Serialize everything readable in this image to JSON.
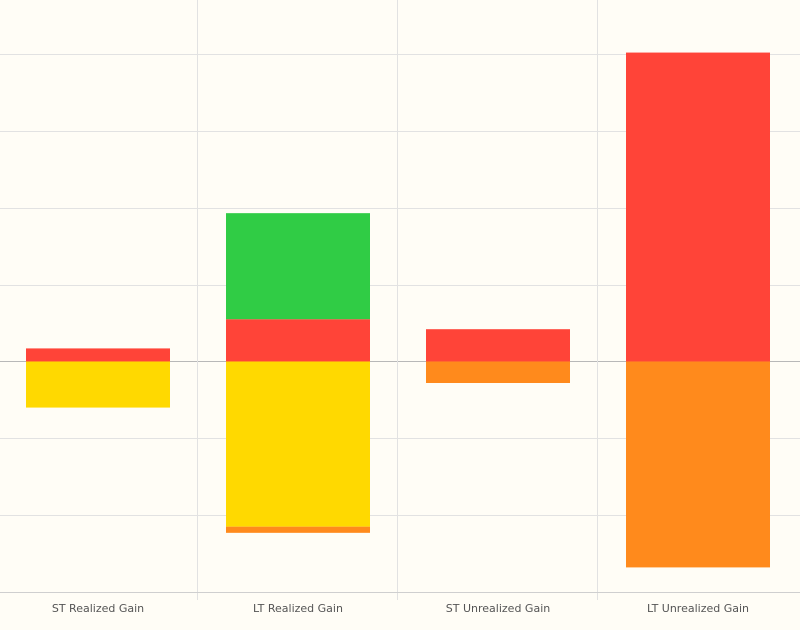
{
  "chart_data": {
    "type": "bar",
    "stacked": true,
    "categories": [
      "ST Realized Gain",
      "LT Realized Gain",
      "ST Unrealized Gain",
      "LT Unrealized Gain"
    ],
    "series": [
      {
        "color": "#ff4438",
        "values": [
          0.17,
          0.55,
          0.42,
          4.02
        ]
      },
      {
        "color": "#30cc45",
        "values": [
          0,
          1.38,
          0,
          0
        ]
      },
      {
        "color": "#ffd900",
        "values": [
          -0.6,
          -2.15,
          0,
          0
        ]
      },
      {
        "color": "#ff8a1c",
        "values": [
          0,
          -0.08,
          -0.28,
          -2.68
        ]
      }
    ],
    "ylim": [
      -3.0,
      4.6
    ],
    "yticks": [
      -2,
      -1,
      0,
      1,
      2,
      3,
      4
    ],
    "grid": true,
    "legend": "none",
    "xlabel": "",
    "ylabel": ""
  }
}
